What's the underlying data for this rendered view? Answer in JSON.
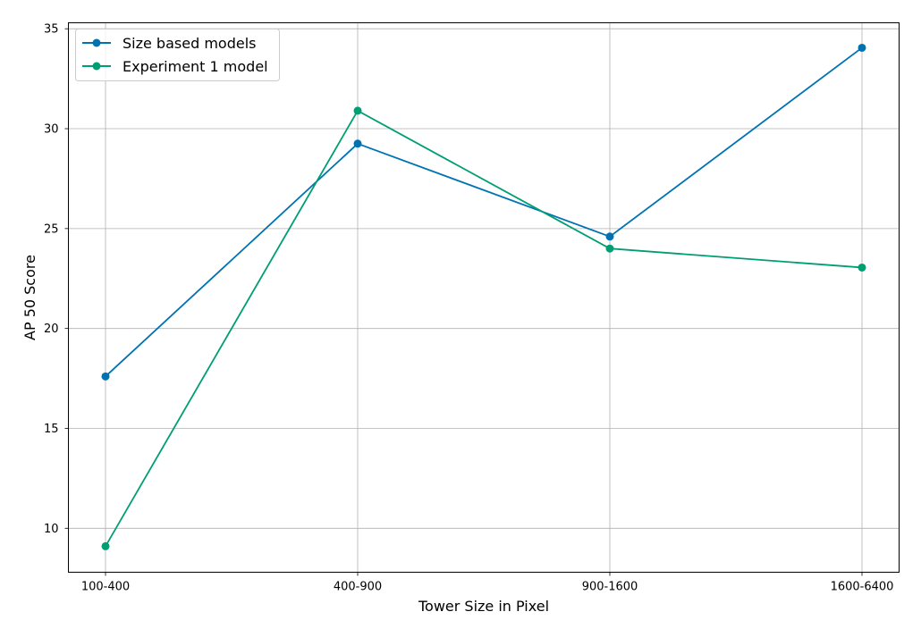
{
  "chart_data": {
    "type": "line",
    "categories": [
      "100-400",
      "400-900",
      "900-1600",
      "1600-6400"
    ],
    "xlabel": "Tower Size in Pixel",
    "ylabel": "AP 50 Score",
    "ylim": [
      7.8,
      35.3
    ],
    "yticks": [
      10,
      15,
      20,
      25,
      30,
      35
    ],
    "ytick_labels": [
      "10",
      "15",
      "20",
      "25",
      "30",
      "35"
    ],
    "grid": true,
    "legend_position": "top-left",
    "series": [
      {
        "name": "Size based models",
        "color": "#0072b2",
        "marker": "circle",
        "values": [
          17.6,
          29.25,
          24.6,
          34.05
        ]
      },
      {
        "name": "Experiment 1 model",
        "color": "#009e73",
        "marker": "circle",
        "values": [
          9.1,
          30.9,
          24.0,
          23.05
        ]
      }
    ]
  }
}
